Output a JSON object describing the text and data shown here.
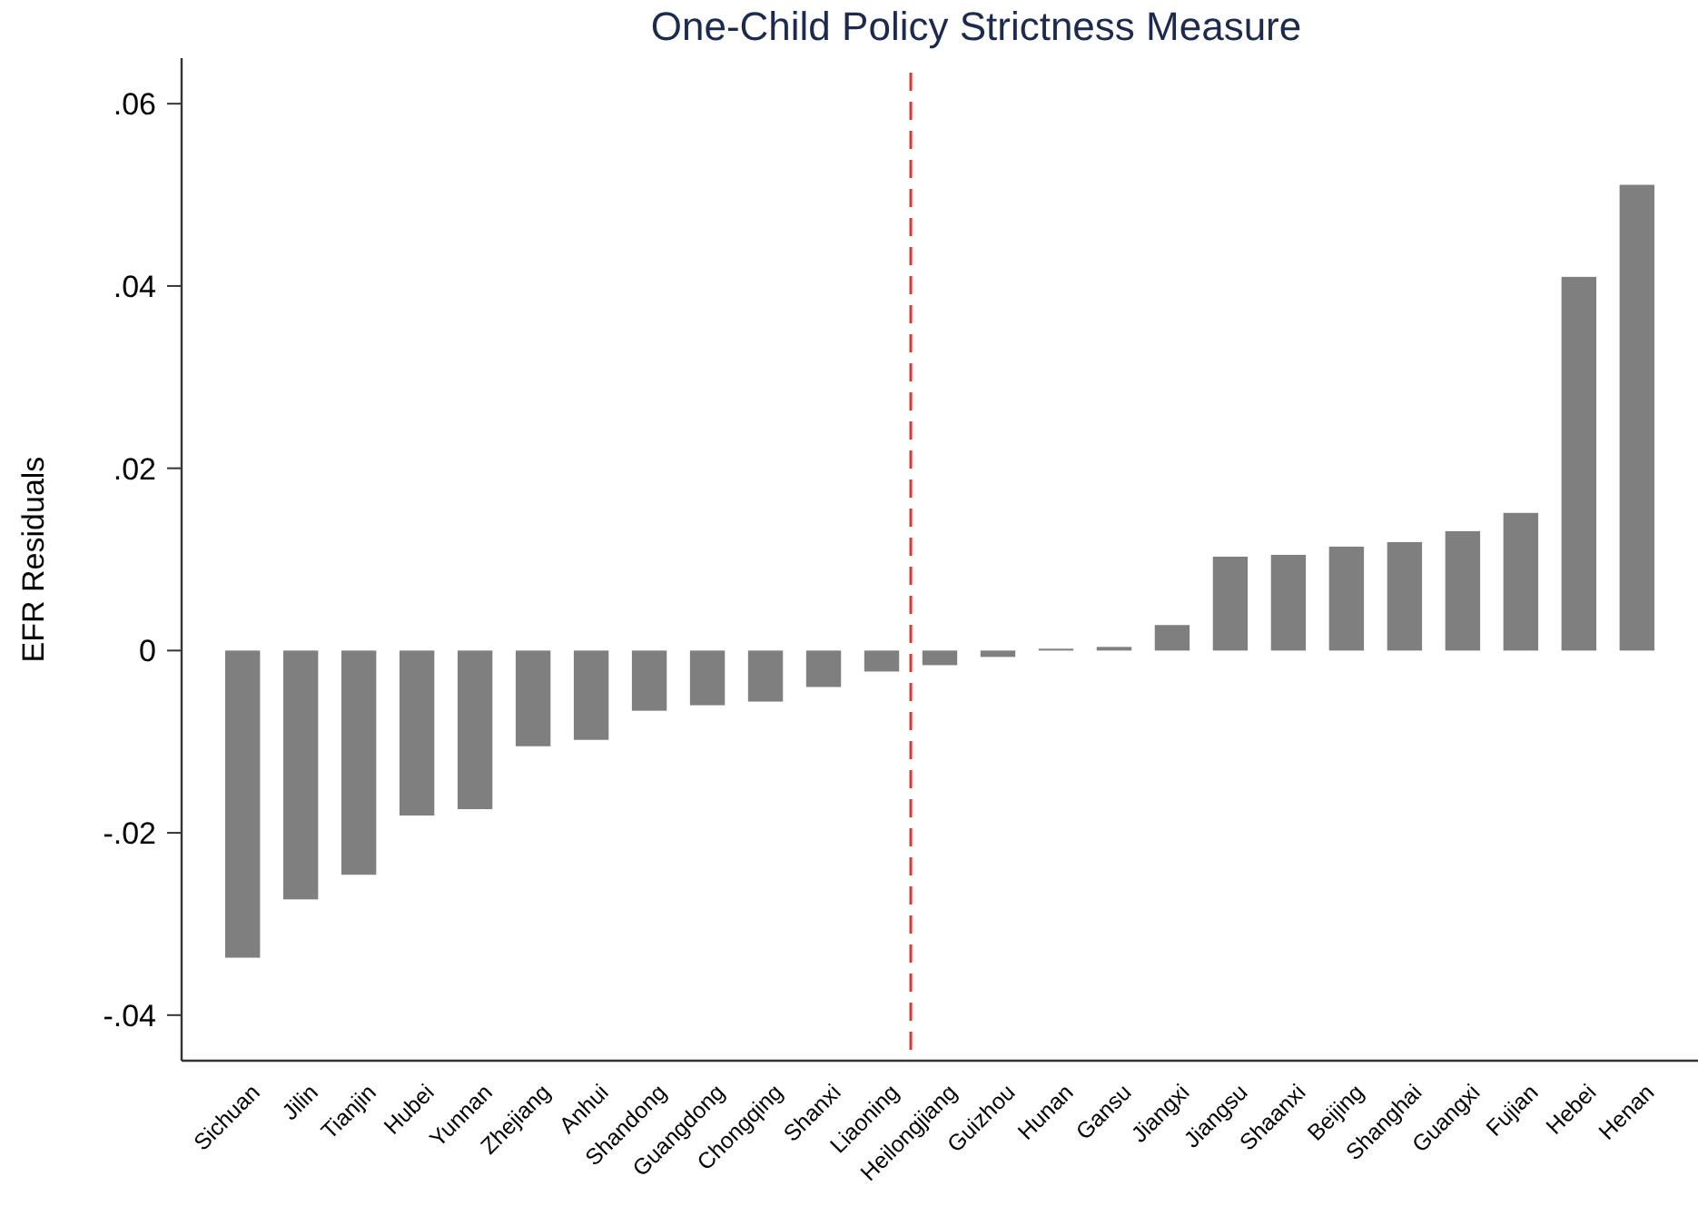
{
  "chart_data": {
    "type": "bar",
    "title": "One-Child Policy Strictness Measure",
    "ylabel": "EFR Residuals",
    "categories": [
      "Sichuan",
      "Jilin",
      "Tianjin",
      "Hubei",
      "Yunnan",
      "Zhejiang",
      "Anhui",
      "Shandong",
      "Guangdong",
      "Chongqing",
      "Shanxi",
      "Liaoning",
      "Heilongjiang",
      "Guizhou",
      "Hunan",
      "Gansu",
      "Jiangxi",
      "Jiangsu",
      "Shaanxi",
      "Beijing",
      "Shanghai",
      "Guangxi",
      "Fujian",
      "Hebei",
      "Henan"
    ],
    "values": [
      -0.0337,
      -0.0273,
      -0.0246,
      -0.0181,
      -0.0174,
      -0.0105,
      -0.0098,
      -0.0066,
      -0.006,
      -0.0056,
      -0.004,
      -0.0023,
      -0.0016,
      -0.0007,
      0.0002,
      0.0004,
      0.0028,
      0.0103,
      0.0105,
      0.0114,
      0.0119,
      0.0131,
      0.0151,
      0.041,
      0.0511
    ],
    "color": "#7f7f7f",
    "ylim": [
      -0.045,
      0.065
    ],
    "yticks": [
      {
        "value": -0.04,
        "label": "-.04"
      },
      {
        "value": -0.02,
        "label": "-.02"
      },
      0,
      {
        "value": 0.02,
        "label": ".02"
      },
      {
        "value": 0.04,
        "label": ".04"
      },
      {
        "value": 0.06,
        "label": ".06"
      }
    ],
    "ref_lines": [
      {
        "axis": "x",
        "value": "Heilongjiang",
        "color": "#e8322f",
        "line_style": "dashed"
      }
    ],
    "grid": false
  }
}
